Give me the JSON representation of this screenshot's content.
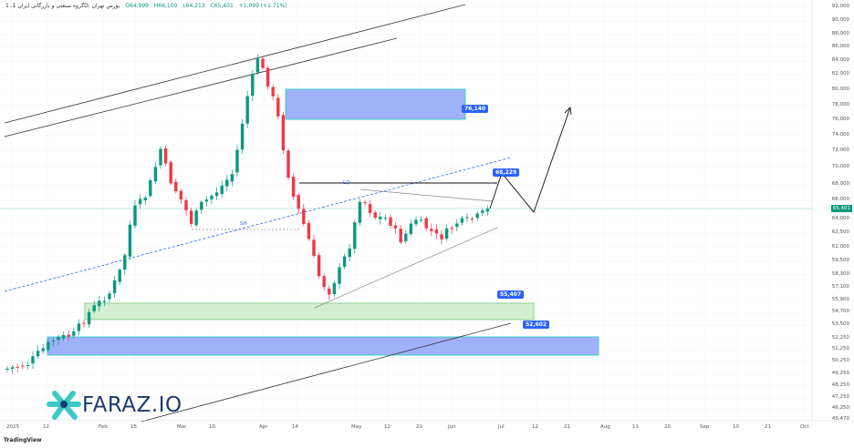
{
  "header": {
    "title": "1 ،گروه صنعتی و بازرگانی ایران 1D، بورس تهران",
    "open": "O64,999",
    "high": "H66,100",
    "low": "L64,213",
    "close": "C65,401",
    "change": "+1,099 (+1.71%)"
  },
  "price_axis": [
    "92,000",
    "90,000",
    "88,000",
    "86,000",
    "84,000",
    "82,000",
    "80,000",
    "78,000",
    "76,000",
    "74,000",
    "72,000",
    "70,000",
    "68,000",
    "66,000",
    "64,000",
    "62,500",
    "61,000",
    "59,500",
    "58,300",
    "57,100",
    "55,900",
    "54,700",
    "53,500",
    "52,250",
    "51,250",
    "50,250",
    "49,250",
    "48,250",
    "47,250",
    "46,250",
    "45,470"
  ],
  "current_price": "65,401",
  "time_axis": [
    "2025",
    "12",
    "Feb",
    "15",
    "Mar",
    "10",
    "Apr",
    "14",
    "May",
    "12",
    "21",
    "Jun",
    "Jul",
    "12",
    "21",
    "Aug",
    "11",
    "20",
    "Sep",
    "10",
    "21",
    "Oct"
  ],
  "annotations": {
    "lq": "LQ",
    "sh": "SH",
    "level_76140": "76,140",
    "level_68229": "68,229",
    "level_55407": "55,407",
    "level_52602": "52,602"
  },
  "logo": "FARAZ.IO",
  "footer": "TradingView",
  "colors": {
    "up": "#089981",
    "down": "#f23645",
    "zone_blue": "#a9b8fb",
    "zone_green": "#cfeccd",
    "accent": "#2962ff"
  }
}
